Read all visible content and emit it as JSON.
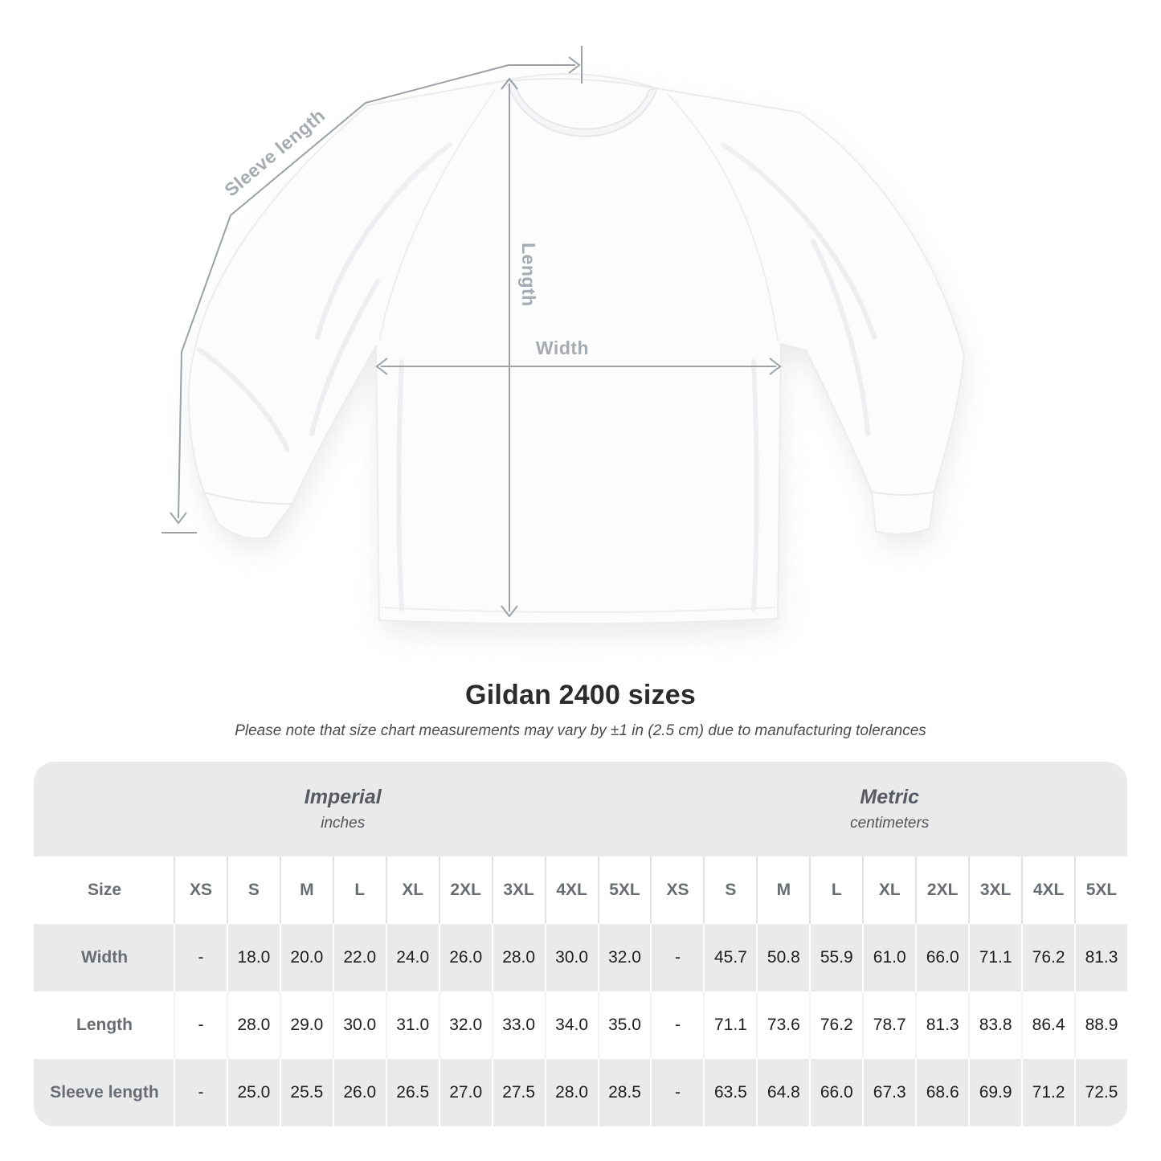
{
  "diagram": {
    "sleeve_length_label": "Sleeve length",
    "length_label": "Length",
    "width_label": "Width"
  },
  "heading": {
    "title": "Gildan 2400 sizes",
    "subtitle": "Please note that size chart measurements may vary by ±1 in (2.5 cm) due to manufacturing tolerances"
  },
  "table": {
    "size_header": "Size",
    "groups": [
      {
        "name": "Imperial",
        "unit": "inches"
      },
      {
        "name": "Metric",
        "unit": "centimeters"
      }
    ],
    "sizes": [
      "XS",
      "S",
      "M",
      "L",
      "XL",
      "2XL",
      "3XL",
      "4XL",
      "5XL"
    ],
    "rows": [
      {
        "label": "Width",
        "imperial": [
          "-",
          "18.0",
          "20.0",
          "22.0",
          "24.0",
          "26.0",
          "28.0",
          "30.0",
          "32.0"
        ],
        "metric": [
          "-",
          "45.7",
          "50.8",
          "55.9",
          "61.0",
          "66.0",
          "71.1",
          "76.2",
          "81.3"
        ]
      },
      {
        "label": "Length",
        "imperial": [
          "-",
          "28.0",
          "29.0",
          "30.0",
          "31.0",
          "32.0",
          "33.0",
          "34.0",
          "35.0"
        ],
        "metric": [
          "-",
          "71.1",
          "73.6",
          "76.2",
          "78.7",
          "81.3",
          "83.8",
          "86.4",
          "88.9"
        ]
      },
      {
        "label": "Sleeve length",
        "imperial": [
          "-",
          "25.0",
          "25.5",
          "26.0",
          "26.5",
          "27.0",
          "27.5",
          "28.0",
          "28.5"
        ],
        "metric": [
          "-",
          "63.5",
          "64.8",
          "66.0",
          "67.3",
          "68.6",
          "69.9",
          "71.2",
          "72.5"
        ]
      }
    ]
  },
  "colors": {
    "measure_line": "#9ba1a7",
    "measure_label": "#a6abb1",
    "table_band": "#eaeaea",
    "header_text": "#686d74",
    "data_text": "#1e1e1e",
    "title_text": "#2b2b2b"
  },
  "chart_data": {
    "type": "table",
    "title": "Gildan 2400 sizes",
    "note": "Please note that size chart measurements may vary by ±1 in (2.5 cm) due to manufacturing tolerances",
    "columns": [
      "Size",
      "XS",
      "S",
      "M",
      "L",
      "XL",
      "2XL",
      "3XL",
      "4XL",
      "5XL"
    ],
    "unit_groups": [
      "Imperial (inches)",
      "Metric (centimeters)"
    ],
    "rows_imperial": [
      [
        "Width",
        null,
        18.0,
        20.0,
        22.0,
        24.0,
        26.0,
        28.0,
        30.0,
        32.0
      ],
      [
        "Length",
        null,
        28.0,
        29.0,
        30.0,
        31.0,
        32.0,
        33.0,
        34.0,
        35.0
      ],
      [
        "Sleeve length",
        null,
        25.0,
        25.5,
        26.0,
        26.5,
        27.0,
        27.5,
        28.0,
        28.5
      ]
    ],
    "rows_metric": [
      [
        "Width",
        null,
        45.7,
        50.8,
        55.9,
        61.0,
        66.0,
        71.1,
        76.2,
        81.3
      ],
      [
        "Length",
        null,
        71.1,
        73.6,
        76.2,
        78.7,
        81.3,
        83.8,
        86.4,
        88.9
      ],
      [
        "Sleeve length",
        null,
        63.5,
        64.8,
        66.0,
        67.3,
        68.6,
        69.9,
        71.2,
        72.5
      ]
    ]
  }
}
